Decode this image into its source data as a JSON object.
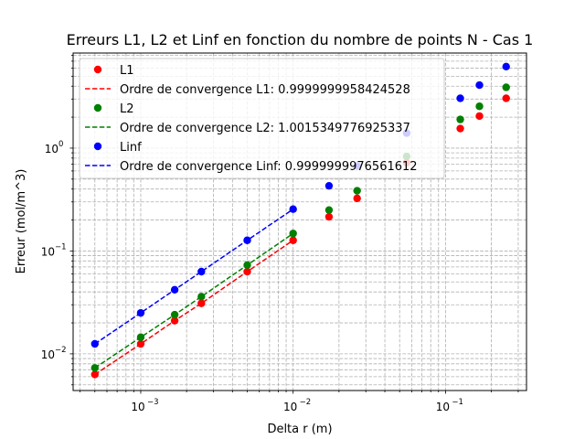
{
  "chart_data": {
    "type": "scatter",
    "title": "Erreurs L1, L2 et Linf en fonction du nombre de points N - Cas 1",
    "xlabel": "Delta r (m)",
    "ylabel": "Erreur (mol/m^3)",
    "xscale": "log",
    "yscale": "log",
    "xlim": [
      0.00036,
      0.34
    ],
    "ylim": [
      0.0044,
      8.4
    ],
    "xticks": [
      {
        "value": 0.001,
        "base": "10",
        "exp": "−3"
      },
      {
        "value": 0.01,
        "base": "10",
        "exp": "−2"
      },
      {
        "value": 0.1,
        "base": "10",
        "exp": "−1"
      }
    ],
    "yticks": [
      {
        "value": 0.01,
        "base": "10",
        "exp": "−2"
      },
      {
        "value": 0.1,
        "base": "10",
        "exp": "−1"
      },
      {
        "value": 1,
        "base": "10",
        "exp": "0"
      }
    ],
    "grid": "major-and-minor",
    "legend_position": "upper-left",
    "series": [
      {
        "name": "L1",
        "kind": "points",
        "color": "#ff0000",
        "x": [
          0.0005,
          0.001,
          0.00167,
          0.0025,
          0.005,
          0.01,
          0.0172,
          0.0263,
          0.0556,
          0.125,
          0.167,
          0.25
        ],
        "y": [
          0.0063,
          0.0125,
          0.021,
          0.031,
          0.063,
          0.127,
          0.215,
          0.325,
          0.72,
          1.55,
          2.05,
          3.05
        ]
      },
      {
        "name": "Ordre de convergence L1: 0.9999999958424528",
        "kind": "line",
        "color": "#ff0000",
        "x": [
          0.0005,
          0.001,
          0.00167,
          0.0025,
          0.005,
          0.01
        ],
        "y": [
          0.0063,
          0.0125,
          0.021,
          0.031,
          0.063,
          0.127
        ]
      },
      {
        "name": "L2",
        "kind": "points",
        "color": "#008000",
        "x": [
          0.0005,
          0.001,
          0.00167,
          0.0025,
          0.005,
          0.01,
          0.0172,
          0.0263,
          0.0556,
          0.125,
          0.167,
          0.25
        ],
        "y": [
          0.0073,
          0.0145,
          0.024,
          0.036,
          0.073,
          0.148,
          0.25,
          0.385,
          0.83,
          1.9,
          2.55,
          3.9
        ]
      },
      {
        "name": "Ordre de convergence L2: 1.0015349776925337",
        "kind": "line",
        "color": "#008000",
        "x": [
          0.0005,
          0.001,
          0.00167,
          0.0025,
          0.005,
          0.01
        ],
        "y": [
          0.0073,
          0.0145,
          0.024,
          0.036,
          0.073,
          0.148
        ]
      },
      {
        "name": "Linf",
        "kind": "points",
        "color": "#0000ff",
        "x": [
          0.0005,
          0.001,
          0.00167,
          0.0025,
          0.005,
          0.01,
          0.0172,
          0.0263,
          0.0556,
          0.125,
          0.167,
          0.25
        ],
        "y": [
          0.0125,
          0.025,
          0.042,
          0.063,
          0.127,
          0.255,
          0.43,
          0.67,
          1.4,
          3.05,
          4.1,
          6.2
        ]
      },
      {
        "name": "Ordre de convergence Linf: 0.9999999976561612",
        "kind": "line",
        "color": "#0000ff",
        "x": [
          0.0005,
          0.001,
          0.00167,
          0.0025,
          0.005,
          0.01
        ],
        "y": [
          0.0125,
          0.025,
          0.042,
          0.063,
          0.127,
          0.255
        ]
      }
    ]
  }
}
